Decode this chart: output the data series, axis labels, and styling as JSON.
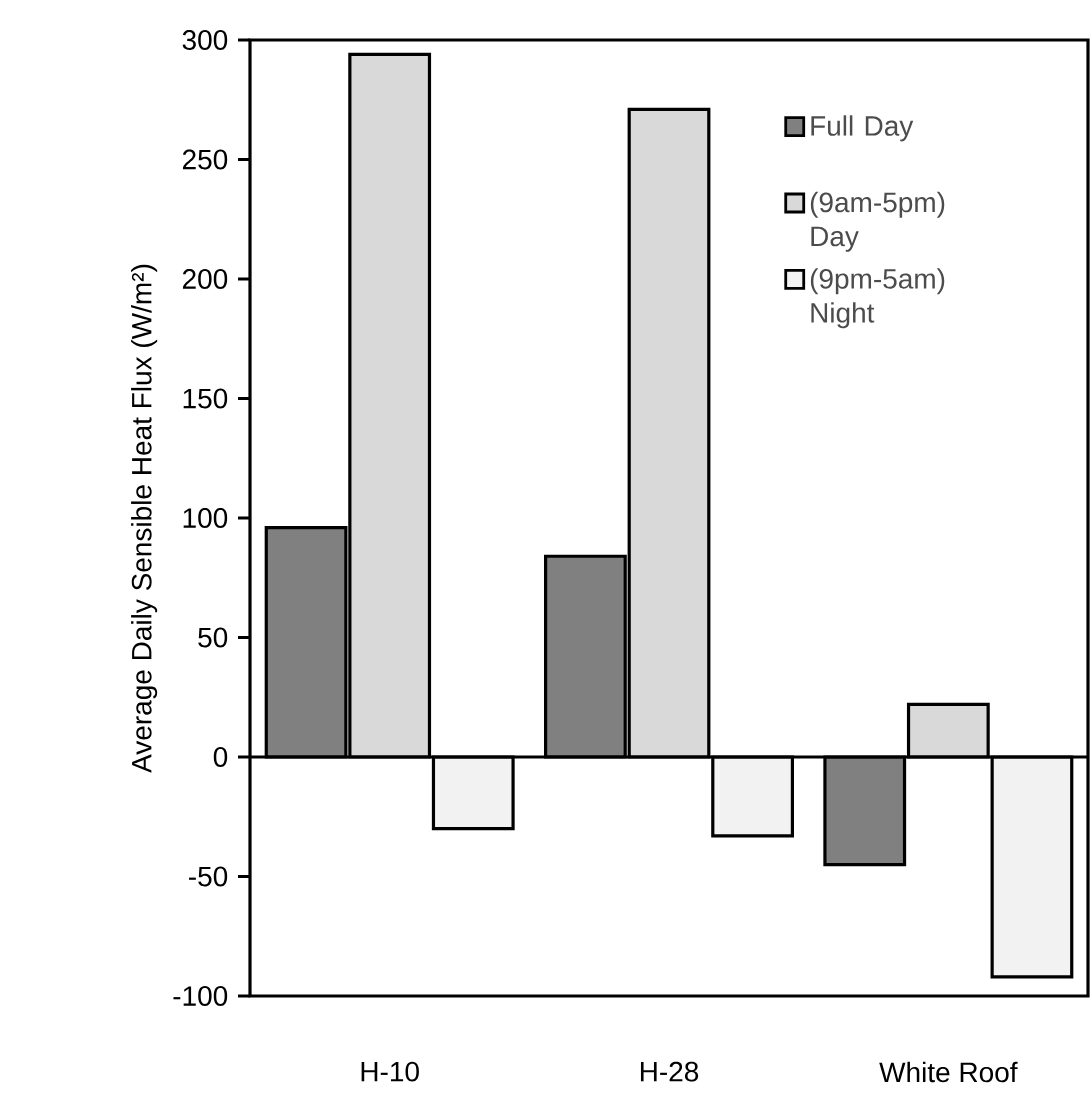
{
  "chart_data": {
    "type": "bar",
    "ylabel": "Average Daily Sensible Heat Flux (W/m²)",
    "categories": [
      "H-10",
      "H-28",
      "White Roof"
    ],
    "series": [
      {
        "name": "Full Day",
        "color": "#808080",
        "values": [
          96,
          84,
          -45
        ]
      },
      {
        "name": "(9am-5pm) Day",
        "color": "#d9d9d9",
        "values": [
          294,
          271,
          22
        ]
      },
      {
        "name": "(9pm-5am) Night",
        "color": "#f2f2f2",
        "values": [
          -30,
          -33,
          -92
        ]
      }
    ],
    "ylim": [
      -100,
      300
    ],
    "yticks": [
      -100,
      -50,
      0,
      50,
      100,
      150,
      200,
      250,
      300
    ],
    "legend": "top right"
  }
}
